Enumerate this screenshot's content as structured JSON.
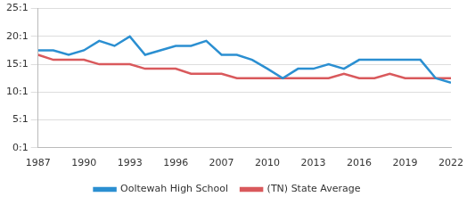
{
  "chart_data": {
    "type": "line",
    "categories": [
      "1987",
      null,
      null,
      "1990",
      null,
      null,
      "1993",
      null,
      null,
      "1996",
      null,
      null,
      "2007",
      null,
      null,
      "2010",
      null,
      null,
      "2013",
      null,
      null,
      "2016",
      null,
      null,
      "2019",
      null,
      null,
      "2022"
    ],
    "series": [
      {
        "name": "Ooltewah High School",
        "color": "#2b8fd1",
        "values": [
          17.5,
          17.5,
          16.7,
          17.5,
          19.2,
          18.3,
          20,
          16.7,
          17.5,
          18.3,
          18.3,
          19.2,
          16.7,
          16.7,
          15.8,
          14.2,
          12.5,
          14.2,
          14.2,
          15,
          14.2,
          15.8,
          15.8,
          15.8,
          15.8,
          15.8,
          12.5,
          11.7
        ]
      },
      {
        "name": "(TN) State Average",
        "color": "#d9595c",
        "values": [
          16.7,
          15.8,
          15.8,
          15.8,
          15,
          15,
          15,
          14.2,
          14.2,
          14.2,
          13.3,
          13.3,
          13.3,
          12.5,
          12.5,
          12.5,
          12.5,
          12.5,
          12.5,
          12.5,
          13.3,
          12.5,
          12.5,
          13.3,
          12.5,
          12.5,
          12.5,
          12.5
        ]
      }
    ],
    "ylim": [
      0,
      25
    ],
    "yticks": [
      {
        "value": 0,
        "label": "0:1"
      },
      {
        "value": 5,
        "label": "5:1"
      },
      {
        "value": 10,
        "label": "10:1"
      },
      {
        "value": 15,
        "label": "15:1"
      },
      {
        "value": 20,
        "label": "20:1"
      },
      {
        "value": 25,
        "label": "25:1"
      }
    ],
    "grid": true,
    "legend": "bottom"
  }
}
